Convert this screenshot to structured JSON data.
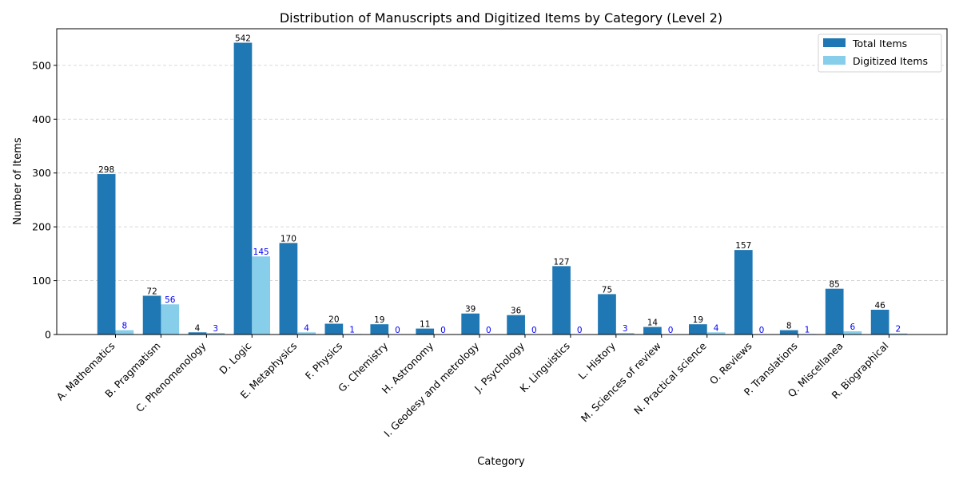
{
  "chart_data": {
    "type": "bar",
    "title": "Distribution of Manuscripts and Digitized Items by Category (Level 2)",
    "xlabel": "Category",
    "ylabel": "Number of Items",
    "ylim": [
      0,
      568
    ],
    "yticks": [
      0,
      100,
      200,
      300,
      400,
      500
    ],
    "grid": "y-dashed",
    "legend_position": "top-right",
    "categories": [
      "A. Mathematics",
      "B. Pragmatism",
      "C. Phenomenology",
      "D. Logic",
      "E. Metaphysics",
      "F. Physics",
      "G. Chemistry",
      "H. Astronomy",
      "I. Geodesy and metrology",
      "J. Psychology",
      "K. Linguistics",
      "L. History",
      "M. Sciences of review",
      "N. Practical science",
      "O. Reviews",
      "P. Translations",
      "Q. Miscellanea",
      "R. Biographical"
    ],
    "series": [
      {
        "name": "Total Items",
        "color": "#1f77b4",
        "label_color": "#000000",
        "values": [
          298,
          72,
          4,
          542,
          170,
          20,
          19,
          11,
          39,
          36,
          127,
          75,
          14,
          19,
          157,
          8,
          85,
          46
        ]
      },
      {
        "name": "Digitized Items",
        "color": "#87ceeb",
        "label_color": "#0000ff",
        "values": [
          8,
          56,
          3,
          145,
          4,
          1,
          0,
          0,
          0,
          0,
          0,
          3,
          0,
          4,
          0,
          1,
          6,
          2
        ]
      }
    ]
  }
}
